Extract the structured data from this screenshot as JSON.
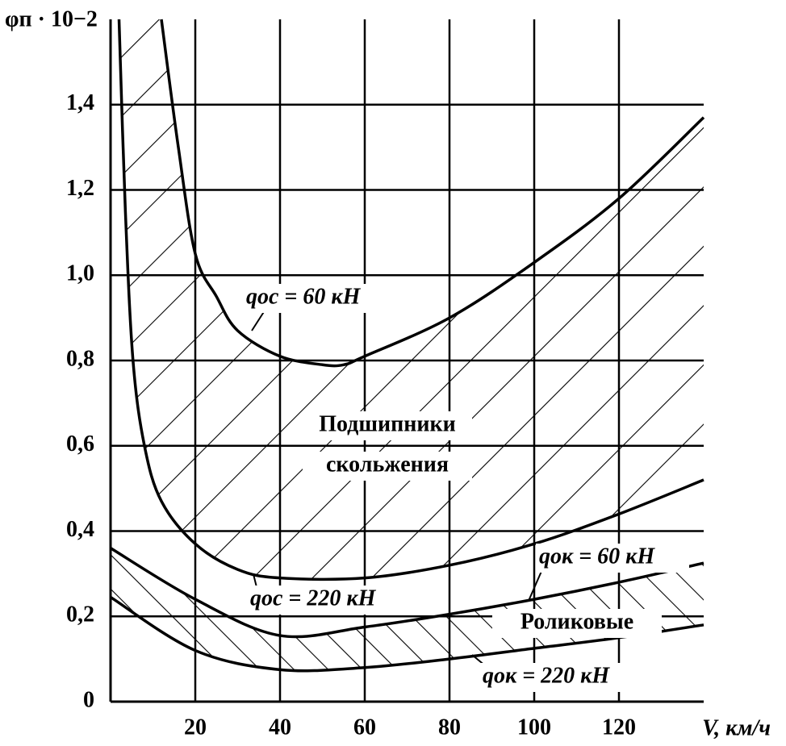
{
  "chart_data": {
    "type": "line",
    "ylabel": "φп · 10−2",
    "xlabel": "V, км/ч",
    "xlim": [
      0,
      140
    ],
    "ylim": [
      0,
      1.6
    ],
    "xticks": [
      20,
      40,
      60,
      80,
      100,
      120
    ],
    "yticks": [
      0,
      {
        "value": 0.2,
        "label": "0,2"
      },
      {
        "value": 0.4,
        "label": "0,4"
      },
      {
        "value": 0.6,
        "label": "0,6"
      },
      {
        "value": 0.8,
        "label": "0,8"
      },
      {
        "value": 1.0,
        "label": "1,0"
      },
      {
        "value": 1.2,
        "label": "1,2"
      },
      {
        "value": 1.4,
        "label": "1,4"
      }
    ],
    "grid": true,
    "color": "#000000",
    "series": [
      {
        "name": "qос = 60 кН",
        "x": [
          12,
          16,
          20,
          25,
          30,
          40,
          50,
          55,
          60,
          80,
          100,
          120,
          140
        ],
        "values": [
          1.6,
          1.3,
          1.05,
          0.95,
          0.87,
          0.81,
          0.79,
          0.79,
          0.81,
          0.9,
          1.03,
          1.18,
          1.37
        ]
      },
      {
        "name": "qос = 220 кН",
        "x": [
          2,
          3.5,
          5.3,
          8,
          12,
          20,
          30,
          40,
          60,
          80,
          100,
          120,
          140
        ],
        "values": [
          1.6,
          1.15,
          0.8,
          0.6,
          0.47,
          0.37,
          0.31,
          0.29,
          0.29,
          0.32,
          0.37,
          0.44,
          0.52
        ]
      },
      {
        "name": "qок = 60 кН",
        "x": [
          0,
          20,
          40,
          60,
          80,
          100,
          120,
          140
        ],
        "values": [
          0.36,
          0.24,
          0.155,
          0.175,
          0.205,
          0.24,
          0.28,
          0.325
        ]
      },
      {
        "name": "qок = 220 кН",
        "x": [
          0,
          20,
          40,
          60,
          80,
          100,
          120,
          140
        ],
        "values": [
          0.245,
          0.12,
          0.075,
          0.08,
          0.1,
          0.125,
          0.15,
          0.18
        ]
      }
    ],
    "annotations": [
      "Подшипники",
      "скольжения",
      "Роликовые"
    ]
  }
}
